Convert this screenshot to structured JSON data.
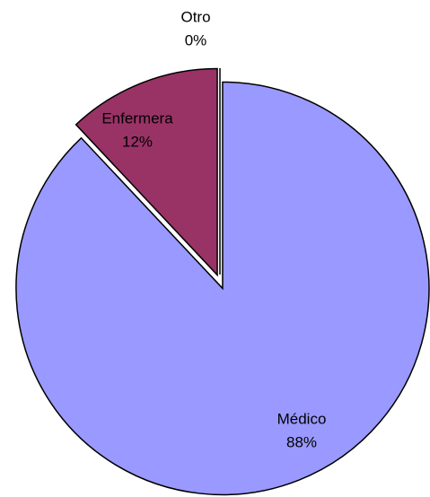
{
  "chart_data": {
    "type": "pie",
    "categories": [
      "Médico",
      "Enfermera",
      "Otro"
    ],
    "values": [
      88,
      12,
      0
    ],
    "value_labels": [
      "88%",
      "12%",
      "0%"
    ],
    "colors": [
      "#9999ff",
      "#993366",
      "#ffffcc"
    ]
  }
}
